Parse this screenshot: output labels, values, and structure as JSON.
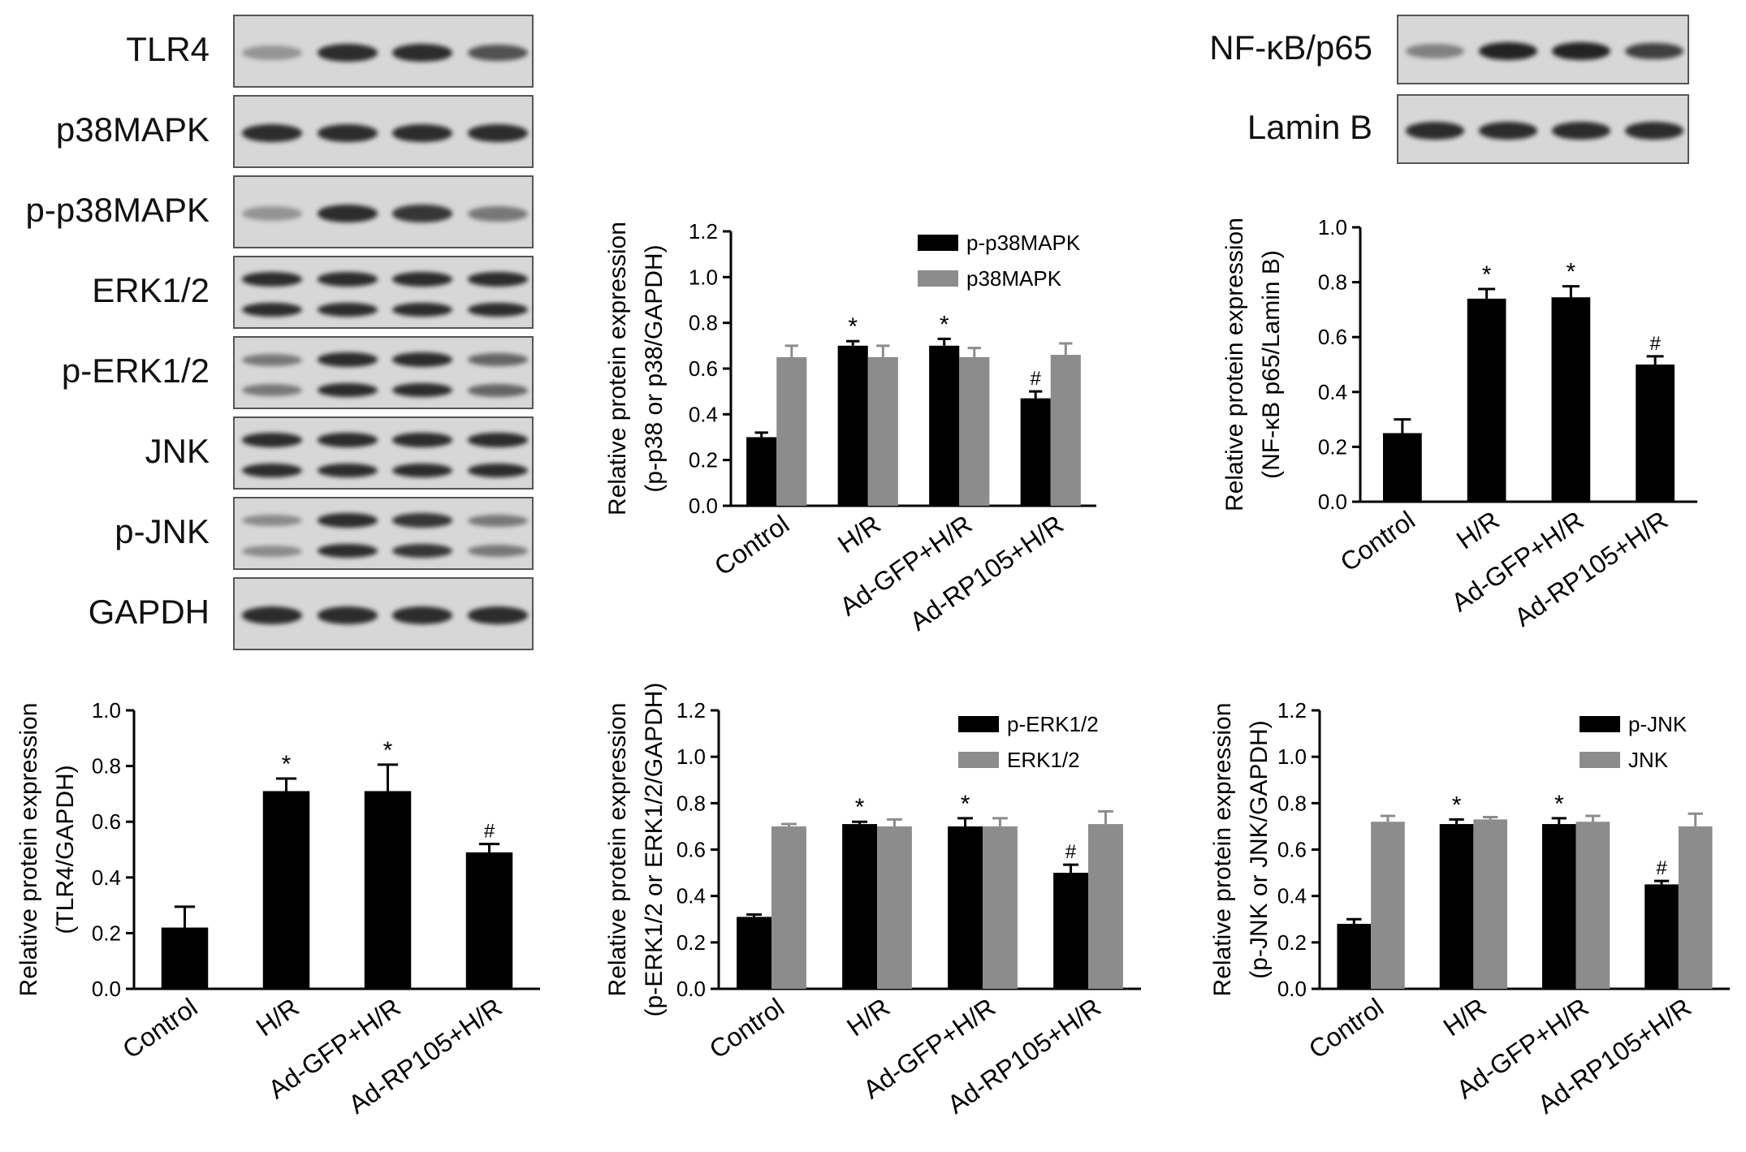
{
  "blots": {
    "left": [
      {
        "label": "TLR4",
        "intensity": [
          0.35,
          0.9,
          0.9,
          0.7
        ],
        "bands": 1
      },
      {
        "label": "p38MAPK",
        "intensity": [
          0.9,
          0.9,
          0.9,
          0.9
        ],
        "bands": 1
      },
      {
        "label": "p-p38MAPK",
        "intensity": [
          0.35,
          0.9,
          0.85,
          0.5
        ],
        "bands": 1
      },
      {
        "label": "ERK1/2",
        "intensity": [
          0.9,
          0.9,
          0.9,
          0.9
        ],
        "bands": 2
      },
      {
        "label": "p-ERK1/2",
        "intensity": [
          0.5,
          0.9,
          0.9,
          0.6
        ],
        "bands": 2
      },
      {
        "label": "JNK",
        "intensity": [
          0.9,
          0.9,
          0.9,
          0.9
        ],
        "bands": 2
      },
      {
        "label": "p-JNK",
        "intensity": [
          0.4,
          0.9,
          0.85,
          0.5
        ],
        "bands": 2
      },
      {
        "label": "GAPDH",
        "intensity": [
          0.9,
          0.9,
          0.9,
          0.9
        ],
        "bands": 1
      }
    ],
    "right": [
      {
        "label": "NF-κB/p65",
        "intensity": [
          0.45,
          0.95,
          0.95,
          0.8
        ],
        "bands": 1
      },
      {
        "label": "Lamin B",
        "intensity": [
          0.9,
          0.9,
          0.9,
          0.9
        ],
        "bands": 1
      }
    ]
  },
  "chart_data": [
    {
      "id": "p38",
      "type": "bar",
      "categories": [
        "Control",
        "H/R",
        "Ad-GFP+H/R",
        "Ad-RP105+H/R"
      ],
      "series": [
        {
          "name": "p-p38MAPK",
          "color": "#000000",
          "values": [
            0.3,
            0.7,
            0.7,
            0.47
          ],
          "errors": [
            0.02,
            0.02,
            0.03,
            0.03
          ],
          "annotations": [
            "",
            "*",
            "*",
            "#"
          ]
        },
        {
          "name": "p38MAPK",
          "color": "#8c8c8c",
          "values": [
            0.65,
            0.65,
            0.65,
            0.66
          ],
          "errors": [
            0.05,
            0.05,
            0.04,
            0.05
          ],
          "annotations": [
            "",
            "",
            "",
            ""
          ]
        }
      ],
      "ylabel_line1": "Relative protein expression",
      "ylabel_line2": "(p-p38 or p38/GAPDH)",
      "ylim": [
        0,
        1.2
      ],
      "yticks": [
        "0.0",
        "0.2",
        "0.4",
        "0.6",
        "0.8",
        "1.0",
        "1.2"
      ],
      "legend": "top-right"
    },
    {
      "id": "nfkb",
      "type": "bar",
      "categories": [
        "Control",
        "H/R",
        "Ad-GFP+H/R",
        "Ad-RP105+H/R"
      ],
      "series": [
        {
          "color": "#000000",
          "values": [
            0.25,
            0.74,
            0.745,
            0.5
          ],
          "errors": [
            0.05,
            0.035,
            0.04,
            0.03
          ],
          "annotations": [
            "",
            "*",
            "*",
            "#"
          ]
        }
      ],
      "ylabel_line1": "Relative protein expression",
      "ylabel_line2": "(NF-κB p65/Lamin B)",
      "ylim": [
        0,
        1.0
      ],
      "yticks": [
        "0.0",
        "0.2",
        "0.4",
        "0.6",
        "0.8",
        "1.0"
      ]
    },
    {
      "id": "tlr4",
      "type": "bar",
      "categories": [
        "Control",
        "H/R",
        "Ad-GFP+H/R",
        "Ad-RP105+H/R"
      ],
      "series": [
        {
          "color": "#000000",
          "values": [
            0.22,
            0.71,
            0.71,
            0.49
          ],
          "errors": [
            0.075,
            0.045,
            0.095,
            0.03
          ],
          "annotations": [
            "",
            "*",
            "*",
            "#"
          ]
        }
      ],
      "ylabel_line1": "Relative protein expression",
      "ylabel_line2": "(TLR4/GAPDH)",
      "ylim": [
        0,
        1.0
      ],
      "yticks": [
        "0.0",
        "0.2",
        "0.4",
        "0.6",
        "0.8",
        "1.0"
      ]
    },
    {
      "id": "erk",
      "type": "bar",
      "categories": [
        "Control",
        "H/R",
        "Ad-GFP+H/R",
        "Ad-RP105+H/R"
      ],
      "series": [
        {
          "name": "p-ERK1/2",
          "color": "#000000",
          "values": [
            0.31,
            0.71,
            0.7,
            0.5
          ],
          "errors": [
            0.01,
            0.01,
            0.035,
            0.035
          ],
          "annotations": [
            "",
            "*",
            "*",
            "#"
          ]
        },
        {
          "name": "ERK1/2",
          "color": "#8c8c8c",
          "values": [
            0.7,
            0.7,
            0.7,
            0.71
          ],
          "errors": [
            0.01,
            0.03,
            0.035,
            0.055
          ],
          "annotations": [
            "",
            "",
            "",
            ""
          ]
        }
      ],
      "ylabel_line1": "Relative protein expression",
      "ylabel_line2": "(p-ERK1/2 or ERK1/2/GAPDH)",
      "ylim": [
        0,
        1.2
      ],
      "yticks": [
        "0.0",
        "0.2",
        "0.4",
        "0.6",
        "0.8",
        "1.0",
        "1.2"
      ],
      "legend": "top-right"
    },
    {
      "id": "jnk",
      "type": "bar",
      "categories": [
        "Control",
        "H/R",
        "Ad-GFP+H/R",
        "Ad-RP105+H/R"
      ],
      "series": [
        {
          "name": "p-JNK",
          "color": "#000000",
          "values": [
            0.28,
            0.71,
            0.71,
            0.45
          ],
          "errors": [
            0.02,
            0.02,
            0.025,
            0.015
          ],
          "annotations": [
            "",
            "*",
            "*",
            "#"
          ]
        },
        {
          "name": "JNK",
          "color": "#8c8c8c",
          "values": [
            0.72,
            0.73,
            0.72,
            0.7
          ],
          "errors": [
            0.025,
            0.01,
            0.025,
            0.055
          ],
          "annotations": [
            "",
            "",
            "",
            ""
          ]
        }
      ],
      "ylabel_line1": "Relative protein expression",
      "ylabel_line2": "(p-JNK or JNK/GAPDH)",
      "ylim": [
        0,
        1.2
      ],
      "yticks": [
        "0.0",
        "0.2",
        "0.4",
        "0.6",
        "0.8",
        "1.0",
        "1.2"
      ],
      "legend": "top-right"
    }
  ]
}
